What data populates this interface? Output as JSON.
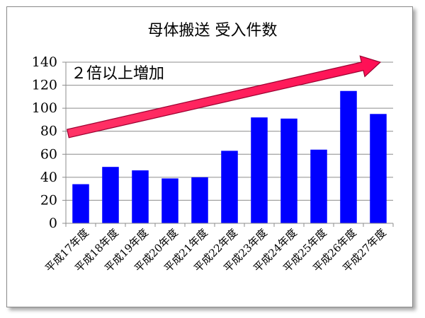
{
  "chart_data": {
    "type": "bar",
    "title": "母体搬送 受入件数",
    "categories": [
      "平成17年度",
      "平成18年度",
      "平成19年度",
      "平成20年度",
      "平成21年度",
      "平成22年度",
      "平成23年度",
      "平成24年度",
      "平成25年度",
      "平成26年度",
      "平成27年度"
    ],
    "values": [
      34,
      49,
      46,
      39,
      40,
      63,
      92,
      91,
      64,
      115,
      95
    ],
    "ylim": [
      0,
      140
    ],
    "yticks": [
      0,
      20,
      40,
      60,
      80,
      100,
      120,
      140
    ],
    "grid": true,
    "bar_color": "#0000ff",
    "annotation": {
      "text": "２倍以上増加",
      "arrow_color": "#ff1a5e",
      "arrow_from": [
        0.0,
        78
      ],
      "arrow_to": [
        10.5,
        140
      ]
    }
  }
}
